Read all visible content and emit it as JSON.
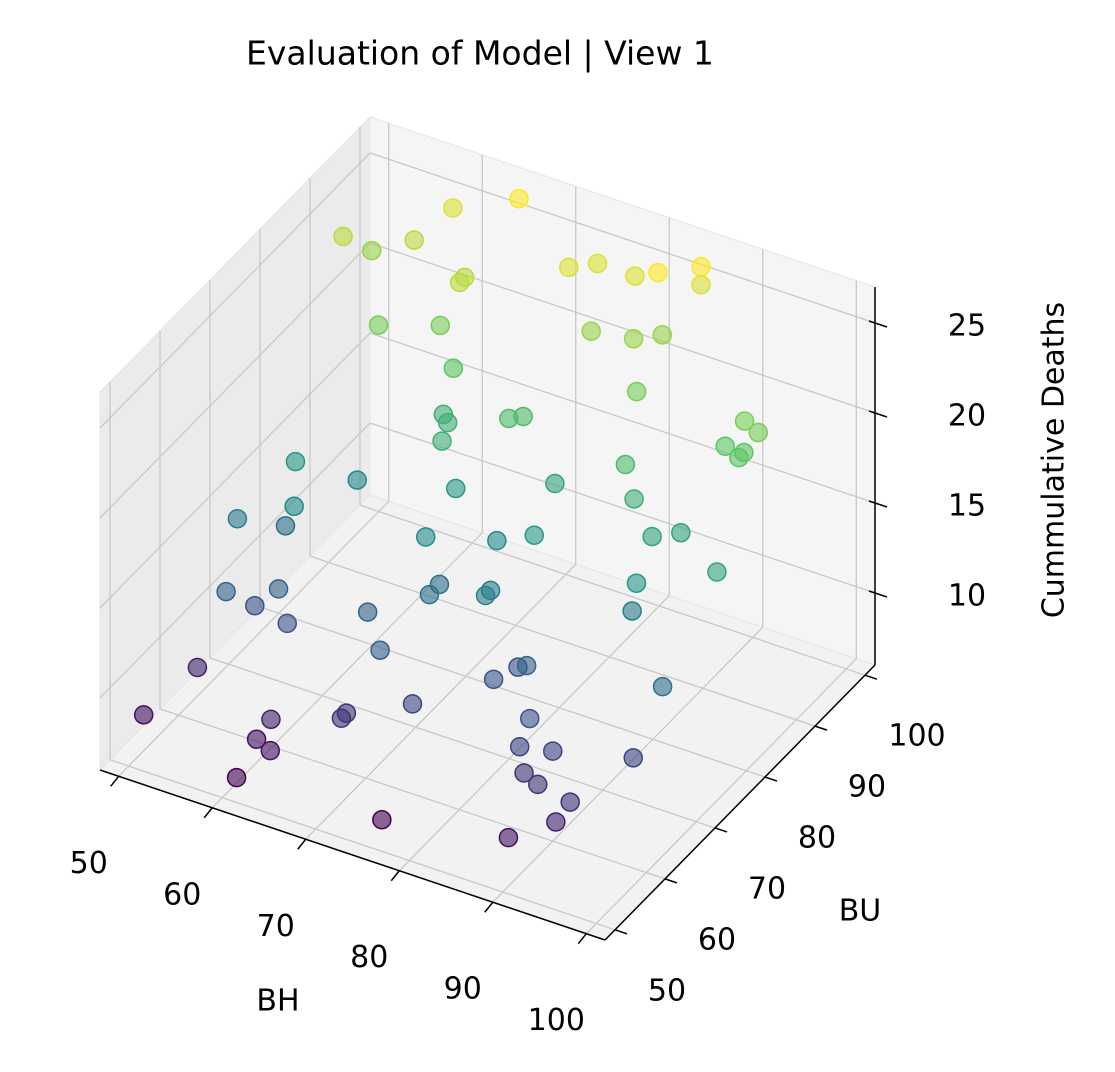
{
  "chart_data": {
    "type": "scatter3d",
    "title": "Evaluation of Model | View 1",
    "xlabel": "BH",
    "ylabel": "BU",
    "zlabel": "Cummulative Deaths",
    "colormap": "viridis",
    "alpha": 0.6,
    "grid": true,
    "xlim": [
      48,
      102
    ],
    "ylim": [
      48,
      102
    ],
    "zlim": [
      6,
      27
    ],
    "xticks": [
      50,
      60,
      70,
      80,
      90,
      100
    ],
    "yticks": [
      50,
      60,
      70,
      80,
      90,
      100
    ],
    "zticks": [
      10,
      15,
      20,
      25
    ],
    "x": [
      52,
      55,
      58,
      61,
      64,
      67,
      70,
      73,
      76,
      79,
      82,
      85,
      88,
      91,
      94,
      97,
      53,
      57,
      62,
      66,
      71,
      75,
      80,
      84,
      89,
      93,
      98,
      51,
      56,
      60,
      65,
      69,
      74,
      78,
      83,
      87,
      92,
      96,
      54,
      59,
      63,
      68,
      72,
      77,
      81,
      86,
      90,
      95,
      99,
      52,
      57,
      61,
      66,
      70,
      75,
      79,
      84,
      88,
      93,
      97,
      55,
      60,
      64,
      69,
      73,
      78,
      82,
      87,
      91,
      96,
      50,
      58,
      67,
      76,
      85,
      94,
      63,
      72,
      81,
      90
    ],
    "y": [
      60,
      72,
      85,
      55,
      90,
      66,
      78,
      95,
      52,
      81,
      68,
      99,
      58,
      74,
      87,
      63,
      93,
      70,
      56,
      83,
      61,
      97,
      75,
      88,
      53,
      80,
      67,
      91,
      64,
      77,
      100,
      57,
      84,
      69,
      95,
      59,
      73,
      86,
      62,
      98,
      54,
      79,
      71,
      92,
      65,
      82,
      57,
      89,
      76,
      68,
      94,
      51,
      85,
      72,
      60,
      97,
      66,
      80,
      55,
      88,
      74,
      63,
      91,
      58,
      83,
      70,
      96,
      61,
      78,
      87,
      53,
      65,
      82,
      75,
      99,
      56,
      88,
      69,
      93,
      60
    ],
    "z": [
      9,
      14,
      22,
      8,
      24,
      13,
      17,
      25,
      7,
      18,
      12,
      26,
      10,
      15,
      21,
      11,
      23,
      16,
      9,
      19,
      13,
      25,
      17,
      22,
      8,
      18,
      14,
      24,
      12,
      16,
      26,
      10,
      20,
      15,
      23,
      11,
      17,
      21,
      13,
      25,
      8,
      19,
      14,
      23,
      12,
      20,
      10,
      22,
      18,
      15,
      24,
      7,
      21,
      16,
      11,
      25,
      13,
      19,
      9,
      22,
      17,
      12,
      24,
      10,
      20,
      15,
      26,
      12,
      18,
      21,
      8,
      13,
      19,
      16,
      25,
      10,
      22,
      14,
      23,
      11
    ]
  }
}
